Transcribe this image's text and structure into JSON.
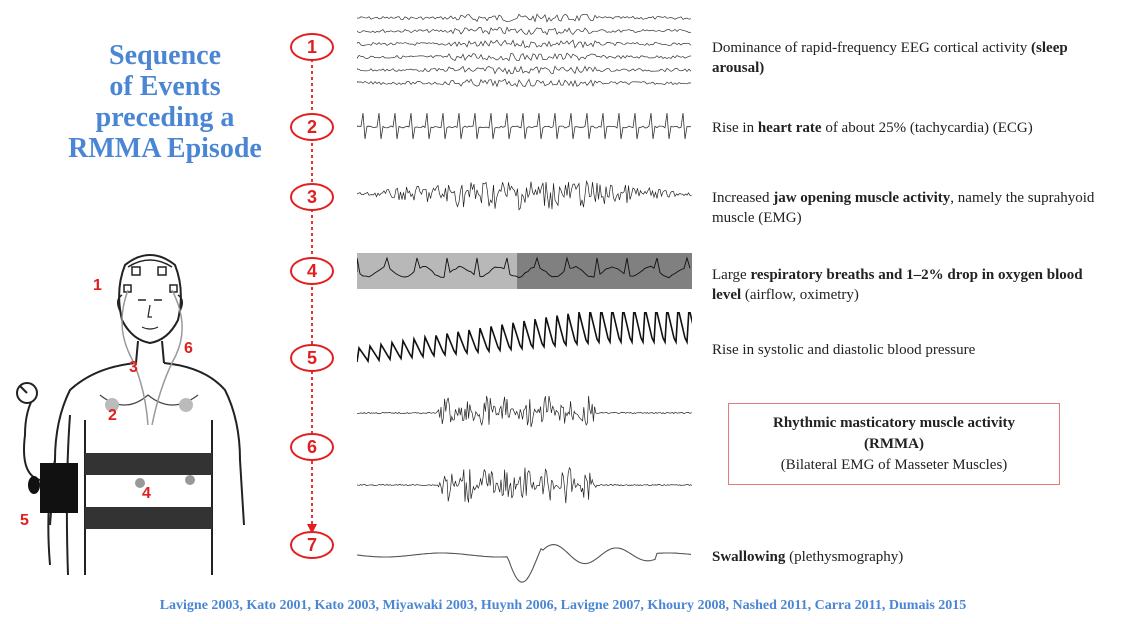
{
  "title": {
    "line1": "Sequence",
    "line2": "of Events",
    "line3": "preceding a",
    "line4": "RMMA Episode"
  },
  "colors": {
    "title": "#4a86d4",
    "accent": "#e02020",
    "box_border": "#e47a7a"
  },
  "figure": {
    "labels": [
      "1",
      "2",
      "3",
      "4",
      "5",
      "6"
    ]
  },
  "steps": [
    {
      "number": "1",
      "pre": "Dominance of rapid-frequency EEG cortical activity ",
      "bold": "(sleep arousal)",
      "post": ""
    },
    {
      "number": "2",
      "pre": "Rise in ",
      "bold": "heart rate",
      "post": " of about 25% (tachycardia) (ECG)"
    },
    {
      "number": "3",
      "pre": "Increased ",
      "bold": "jaw opening muscle activity",
      "post": ", namely the suprahyoid muscle (EMG)"
    },
    {
      "number": "4",
      "pre": "Large ",
      "bold": "respiratory breaths and 1–2% drop in oxygen blood level",
      "post": " (airflow, oximetry)"
    },
    {
      "number": "5",
      "pre": "Rise in systolic and diastolic blood pressure",
      "bold": "",
      "post": ""
    },
    {
      "number": "6",
      "box_title": "Rhythmic masticatory muscle activity (RMMA)",
      "box_sub": "(Bilateral EMG of Masseter Muscles)"
    },
    {
      "number": "7",
      "pre": "",
      "bold": "Swallowing",
      "post": " (plethysmography)"
    }
  ],
  "references": "Lavigne 2003, Kato 2001, Kato 2003, Miyawaki 2003, Huynh 2006, Lavigne 2007, Khoury 2008, Nashed 2011, Carra 2011, Dumais 2015"
}
